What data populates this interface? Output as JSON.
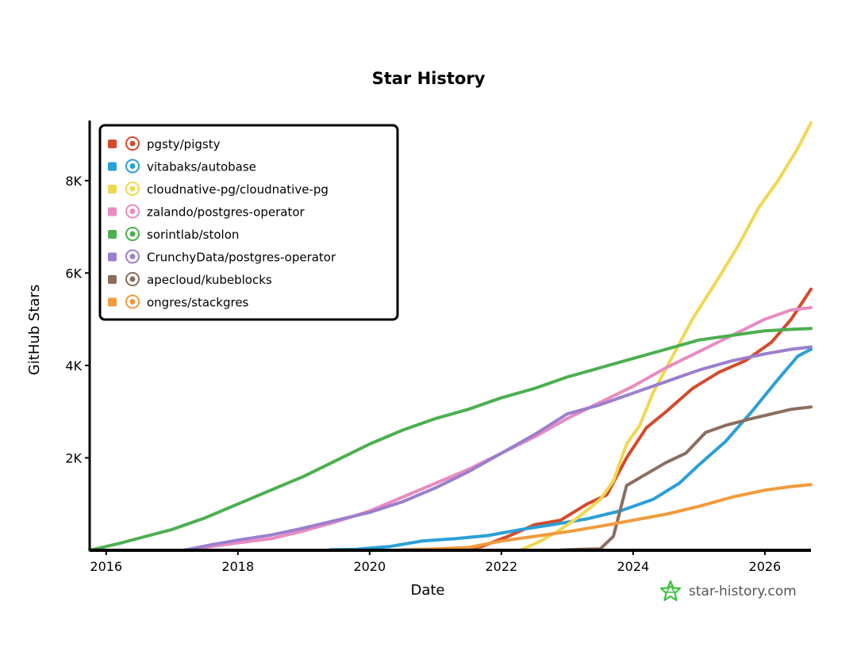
{
  "chart_data": {
    "type": "line",
    "title": "Star History",
    "xlabel": "Date",
    "ylabel": "GitHub Stars",
    "x_range": [
      2015.75,
      2026.7
    ],
    "ylim": [
      0,
      9300
    ],
    "x_ticks": [
      2016,
      2018,
      2020,
      2022,
      2024,
      2026
    ],
    "y_ticks": [
      {
        "value": 2000,
        "label": "2K"
      },
      {
        "value": 4000,
        "label": "4K"
      },
      {
        "value": 6000,
        "label": "6K"
      },
      {
        "value": 8000,
        "label": "8K"
      }
    ],
    "legend_position": "top-left",
    "grid": false,
    "series": [
      {
        "name": "pgsty/pigsty",
        "color": "#d44a2c",
        "icon": "pigsty-logo-icon",
        "points": [
          [
            2021.3,
            20
          ],
          [
            2021.7,
            80
          ],
          [
            2022.1,
            300
          ],
          [
            2022.5,
            550
          ],
          [
            2022.9,
            650
          ],
          [
            2023.3,
            1000
          ],
          [
            2023.6,
            1200
          ],
          [
            2023.9,
            2000
          ],
          [
            2024.2,
            2650
          ],
          [
            2024.5,
            3000
          ],
          [
            2024.9,
            3500
          ],
          [
            2025.3,
            3850
          ],
          [
            2025.7,
            4100
          ],
          [
            2026.1,
            4500
          ],
          [
            2026.4,
            5000
          ],
          [
            2026.7,
            5650
          ]
        ]
      },
      {
        "name": "vitabaks/autobase",
        "color": "#2b9fd8",
        "icon": "autobase-logo-icon",
        "points": [
          [
            2019.4,
            10
          ],
          [
            2019.8,
            20
          ],
          [
            2020.3,
            80
          ],
          [
            2020.8,
            200
          ],
          [
            2021.3,
            250
          ],
          [
            2021.8,
            320
          ],
          [
            2022.3,
            450
          ],
          [
            2022.8,
            560
          ],
          [
            2023.3,
            680
          ],
          [
            2023.8,
            850
          ],
          [
            2024.3,
            1100
          ],
          [
            2024.7,
            1450
          ],
          [
            2025.0,
            1850
          ],
          [
            2025.4,
            2350
          ],
          [
            2025.8,
            3000
          ],
          [
            2026.2,
            3700
          ],
          [
            2026.5,
            4200
          ],
          [
            2026.7,
            4350
          ]
        ]
      },
      {
        "name": "cloudnative-pg/cloudnative-pg",
        "color": "#f0d850",
        "icon": "cloudnative-pg-logo-icon",
        "points": [
          [
            2022.3,
            10
          ],
          [
            2022.6,
            200
          ],
          [
            2022.9,
            450
          ],
          [
            2023.2,
            750
          ],
          [
            2023.5,
            1100
          ],
          [
            2023.7,
            1500
          ],
          [
            2023.9,
            2300
          ],
          [
            2024.1,
            2700
          ],
          [
            2024.3,
            3400
          ],
          [
            2024.6,
            4200
          ],
          [
            2024.9,
            5000
          ],
          [
            2025.3,
            5900
          ],
          [
            2025.6,
            6600
          ],
          [
            2025.9,
            7400
          ],
          [
            2026.2,
            8000
          ],
          [
            2026.5,
            8700
          ],
          [
            2026.7,
            9250
          ]
        ]
      },
      {
        "name": "zalando/postgres-operator",
        "color": "#ea8bc0",
        "icon": "zalando-logo-icon",
        "points": [
          [
            2017.2,
            10
          ],
          [
            2017.6,
            80
          ],
          [
            2018.0,
            160
          ],
          [
            2018.5,
            250
          ],
          [
            2019.0,
            420
          ],
          [
            2019.5,
            620
          ],
          [
            2020.0,
            850
          ],
          [
            2020.5,
            1150
          ],
          [
            2021.0,
            1450
          ],
          [
            2021.5,
            1750
          ],
          [
            2022.0,
            2100
          ],
          [
            2022.5,
            2450
          ],
          [
            2023.0,
            2850
          ],
          [
            2023.5,
            3200
          ],
          [
            2024.0,
            3550
          ],
          [
            2024.5,
            3950
          ],
          [
            2025.0,
            4300
          ],
          [
            2025.5,
            4650
          ],
          [
            2026.0,
            5000
          ],
          [
            2026.4,
            5200
          ],
          [
            2026.7,
            5250
          ]
        ]
      },
      {
        "name": "sorintlab/stolon",
        "color": "#4caf50",
        "icon": "stolon-logo-icon",
        "points": [
          [
            2015.75,
            0
          ],
          [
            2016.2,
            150
          ],
          [
            2016.6,
            300
          ],
          [
            2017.0,
            450
          ],
          [
            2017.5,
            700
          ],
          [
            2018.0,
            1000
          ],
          [
            2018.5,
            1300
          ],
          [
            2019.0,
            1600
          ],
          [
            2019.5,
            1950
          ],
          [
            2020.0,
            2300
          ],
          [
            2020.5,
            2600
          ],
          [
            2021.0,
            2850
          ],
          [
            2021.5,
            3050
          ],
          [
            2022.0,
            3300
          ],
          [
            2022.5,
            3500
          ],
          [
            2023.0,
            3750
          ],
          [
            2023.5,
            3950
          ],
          [
            2024.0,
            4150
          ],
          [
            2024.5,
            4350
          ],
          [
            2025.0,
            4550
          ],
          [
            2025.5,
            4650
          ],
          [
            2026.0,
            4750
          ],
          [
            2026.4,
            4780
          ],
          [
            2026.7,
            4800
          ]
        ]
      },
      {
        "name": "CrunchyData/postgres-operator",
        "color": "#9b7fcc",
        "icon": "crunchydata-logo-icon",
        "points": [
          [
            2017.2,
            5
          ],
          [
            2017.6,
            120
          ],
          [
            2018.0,
            220
          ],
          [
            2018.5,
            330
          ],
          [
            2019.0,
            480
          ],
          [
            2019.5,
            650
          ],
          [
            2020.0,
            820
          ],
          [
            2020.5,
            1050
          ],
          [
            2021.0,
            1350
          ],
          [
            2021.5,
            1700
          ],
          [
            2022.0,
            2100
          ],
          [
            2022.5,
            2500
          ],
          [
            2023.0,
            2950
          ],
          [
            2023.5,
            3150
          ],
          [
            2024.0,
            3400
          ],
          [
            2024.5,
            3650
          ],
          [
            2025.0,
            3900
          ],
          [
            2025.5,
            4100
          ],
          [
            2026.0,
            4250
          ],
          [
            2026.4,
            4350
          ],
          [
            2026.7,
            4400
          ]
        ]
      },
      {
        "name": "apecloud/kubeblocks",
        "color": "#8b6e5e",
        "icon": "kubeblocks-logo-icon",
        "points": [
          [
            2022.9,
            5
          ],
          [
            2023.2,
            20
          ],
          [
            2023.5,
            30
          ],
          [
            2023.7,
            300
          ],
          [
            2023.9,
            1400
          ],
          [
            2024.2,
            1650
          ],
          [
            2024.5,
            1900
          ],
          [
            2024.8,
            2100
          ],
          [
            2025.1,
            2550
          ],
          [
            2025.4,
            2700
          ],
          [
            2025.8,
            2850
          ],
          [
            2026.1,
            2950
          ],
          [
            2026.4,
            3050
          ],
          [
            2026.7,
            3100
          ]
        ]
      },
      {
        "name": "ongres/stackgres",
        "color": "#f29a3c",
        "icon": "stackgres-logo-icon",
        "points": [
          [
            2020.5,
            10
          ],
          [
            2021.0,
            30
          ],
          [
            2021.5,
            60
          ],
          [
            2022.0,
            200
          ],
          [
            2022.5,
            300
          ],
          [
            2023.0,
            400
          ],
          [
            2023.5,
            520
          ],
          [
            2024.0,
            650
          ],
          [
            2024.5,
            780
          ],
          [
            2025.0,
            950
          ],
          [
            2025.5,
            1150
          ],
          [
            2026.0,
            1300
          ],
          [
            2026.4,
            1380
          ],
          [
            2026.7,
            1420
          ]
        ]
      }
    ]
  },
  "watermark": {
    "text": "star-history.com",
    "icon": "star-history-logo-icon",
    "color": "#3cc33c"
  }
}
